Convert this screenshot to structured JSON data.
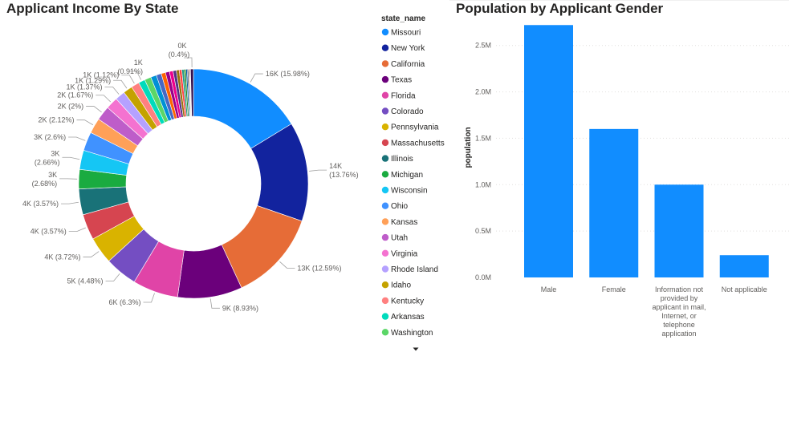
{
  "charts": {
    "left_title": "Applicant Income By State",
    "right_title": "Population by Applicant Gender"
  },
  "legend": {
    "title": "state_name",
    "scroll_icon": "caret-down-icon"
  },
  "chart_data": [
    {
      "type": "donut",
      "title": "Applicant Income By State",
      "legend_title": "state_name",
      "legend_position": "right",
      "slices": [
        {
          "name": "Missouri",
          "value": 15.98,
          "label": "16K (15.98%)",
          "color": "#118DFF"
        },
        {
          "name": "New York",
          "value": 13.76,
          "label": "14K (13.76%)",
          "color": "#12239E"
        },
        {
          "name": "California",
          "value": 12.59,
          "label": "13K (12.59%)",
          "color": "#E66C37"
        },
        {
          "name": "Texas",
          "value": 8.93,
          "label": "9K (8.93%)",
          "color": "#6B007B"
        },
        {
          "name": "Florida",
          "value": 6.3,
          "label": "6K (6.3%)",
          "color": "#E044A7"
        },
        {
          "name": "Colorado",
          "value": 4.48,
          "label": "5K (4.48%)",
          "color": "#744EC2"
        },
        {
          "name": "Pennsylvania",
          "value": 3.72,
          "label": "4K (3.72%)",
          "color": "#D9B300"
        },
        {
          "name": "Massachusetts",
          "value": 3.57,
          "label": "4K (3.57%)",
          "color": "#D64550"
        },
        {
          "name": "Illinois",
          "value": 3.57,
          "label": "4K (3.57%)",
          "color": "#197278"
        },
        {
          "name": "Michigan",
          "value": 2.68,
          "label": "3K (2.68%)",
          "color": "#1AAB40"
        },
        {
          "name": "Wisconsin",
          "value": 2.66,
          "label": "3K (2.66%)",
          "color": "#15C6F4"
        },
        {
          "name": "Ohio",
          "value": 2.6,
          "label": "3K (2.6%)",
          "color": "#4092FF"
        },
        {
          "name": "Kansas",
          "value": 2.12,
          "label": "2K (2.12%)",
          "color": "#FFA058"
        },
        {
          "name": "Utah",
          "value": 2.0,
          "label": "2K (2%)",
          "color": "#BE5DC9"
        },
        {
          "name": "Virginia",
          "value": 1.67,
          "label": "2K (1.67%)",
          "color": "#F472D0"
        },
        {
          "name": "Rhode Island",
          "value": 1.37,
          "label": "1K (1.37%)",
          "color": "#B5A1FF"
        },
        {
          "name": "Idaho",
          "value": 1.29,
          "label": "1K (1.29%)",
          "color": "#C4A200"
        },
        {
          "name": "Kentucky",
          "value": 1.12,
          "label": "1K (1.12%)",
          "color": "#FF8080"
        },
        {
          "name": "Arkansas",
          "value": 0.91,
          "label": "1K (0.91%)",
          "color": "#00DBBC"
        },
        {
          "name": "Washington",
          "value": 0.9,
          "label": "",
          "color": "#5BD667"
        },
        {
          "name": "",
          "value": 0.8,
          "label": "",
          "color": "#0091D5"
        },
        {
          "name": "",
          "value": 0.7,
          "label": "",
          "color": "#4668C5"
        },
        {
          "name": "",
          "value": 0.6,
          "label": "",
          "color": "#FF6300"
        },
        {
          "name": "",
          "value": 0.55,
          "label": "",
          "color": "#99008A"
        },
        {
          "name": "",
          "value": 0.5,
          "label": "",
          "color": "#EC008C"
        },
        {
          "name": "",
          "value": 0.45,
          "label": "",
          "color": "#533285"
        },
        {
          "name": "",
          "value": 0.4,
          "label": "",
          "color": "#99700A"
        },
        {
          "name": "",
          "value": 0.35,
          "label": "",
          "color": "#FF4141"
        },
        {
          "name": "",
          "value": 0.3,
          "label": "",
          "color": "#1F9A85"
        },
        {
          "name": "",
          "value": 0.25,
          "label": "",
          "color": "#25891C"
        },
        {
          "name": "",
          "value": 0.2,
          "label": "",
          "color": "#0057A2"
        },
        {
          "name": "",
          "value": 0.15,
          "label": "",
          "color": "#002050"
        },
        {
          "name": "",
          "value": 0.12,
          "label": "",
          "color": "#C94F0F"
        },
        {
          "name": "",
          "value": 0.1,
          "label": "",
          "color": "#450F54"
        },
        {
          "name": "",
          "value": 0.08,
          "label": "",
          "color": "#B60064"
        },
        {
          "name": "",
          "value": 0.4,
          "label": "0K (0.4%)",
          "color": "#34124F"
        }
      ]
    },
    {
      "type": "bar",
      "title": "Population by Applicant Gender",
      "xlabel": "",
      "ylabel": "population",
      "categories": [
        "Male",
        "Female",
        "Information not provided by applicant in mail, Internet, or telephone application",
        "Not applicable"
      ],
      "category_lines": [
        [
          "Male"
        ],
        [
          "Female"
        ],
        [
          "Information not",
          "provided by",
          "applicant in mail,",
          "Internet, or",
          "telephone",
          "application"
        ],
        [
          "Not applicable"
        ]
      ],
      "values": [
        2720000,
        1600000,
        1000000,
        240000
      ],
      "ylim": [
        0,
        2800000
      ],
      "yticks": [
        0,
        500000,
        1000000,
        1500000,
        2000000,
        2500000
      ],
      "ytick_labels": [
        "0.0M",
        "0.5M",
        "1.0M",
        "1.5M",
        "2.0M",
        "2.5M"
      ],
      "color": "#118DFF",
      "grid": true
    }
  ]
}
